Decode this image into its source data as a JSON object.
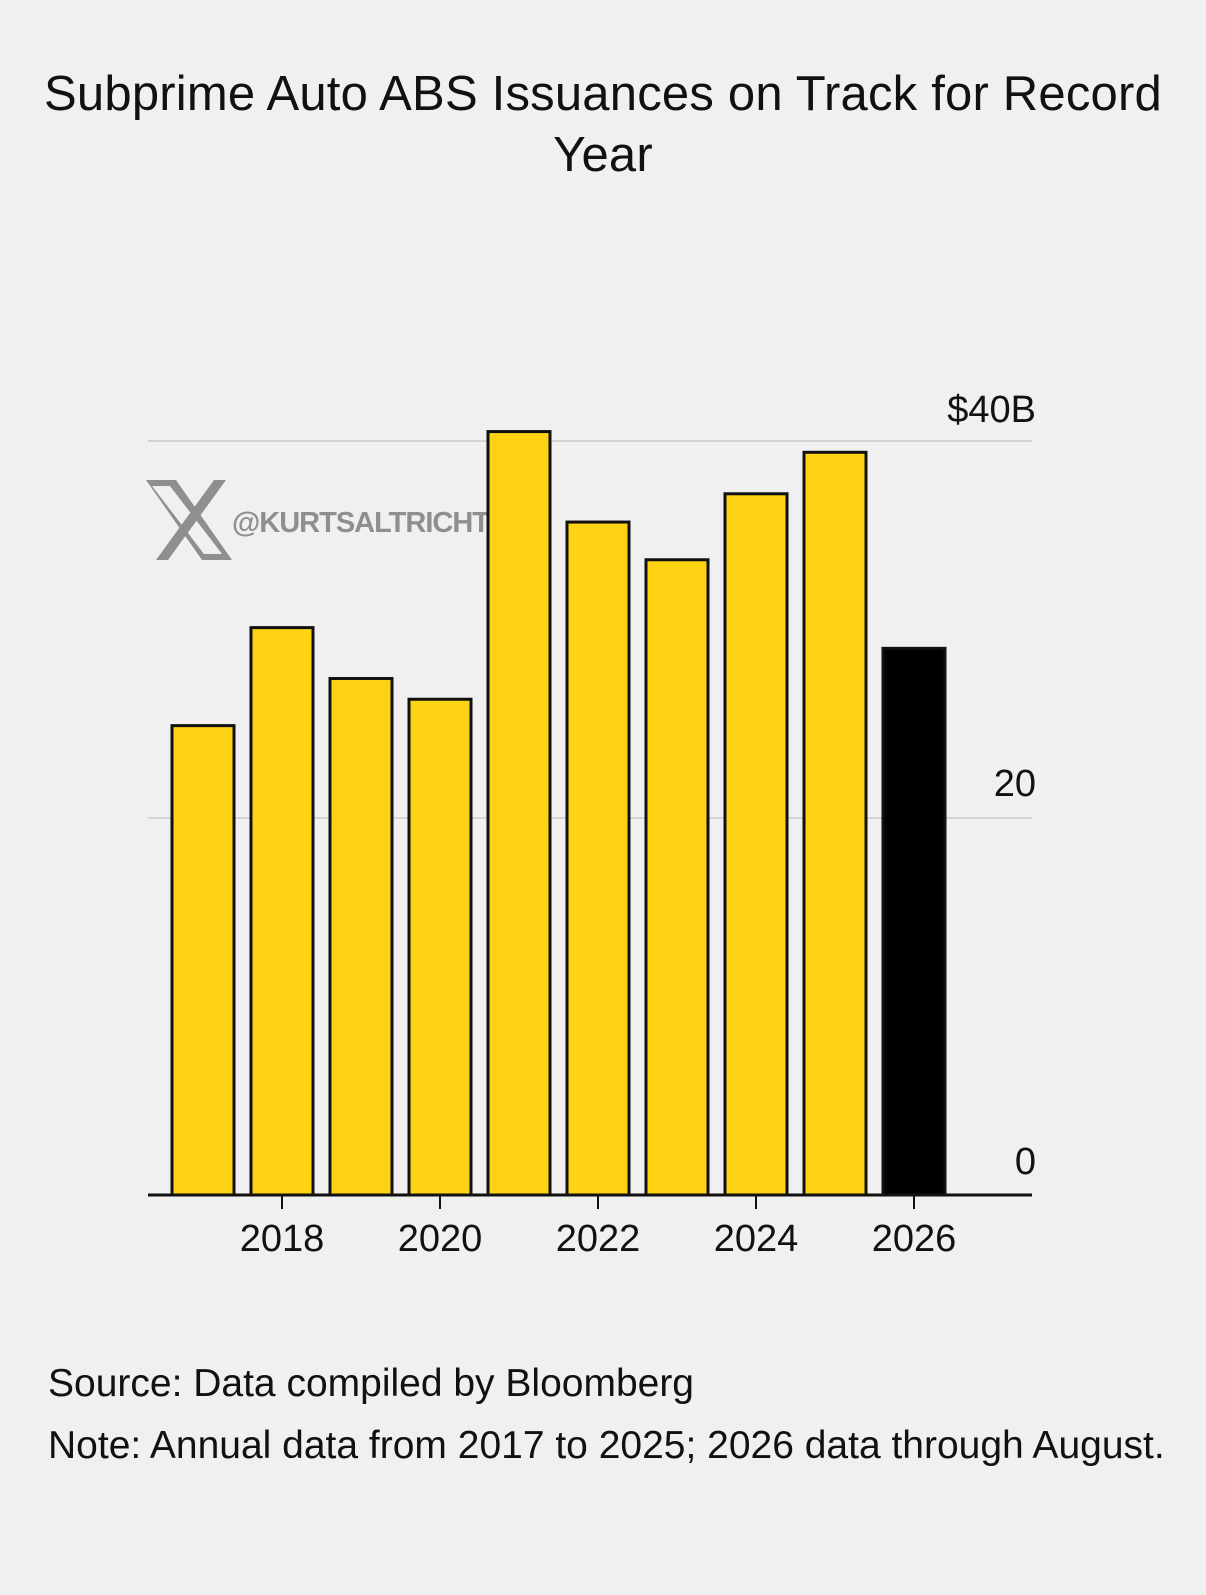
{
  "header": {
    "title": "Subprime Auto ABS Issuances on Track for Record Year"
  },
  "watermark": {
    "icon": "x-logo-icon",
    "handle": "@KURTSALTRICHTER"
  },
  "footer": {
    "source": "Source: Data compiled by Bloomberg",
    "note": "Note: Annual data from 2017 to 2025; 2026 data through August."
  },
  "colors": {
    "background": "#f0f0f0",
    "bar": "#fdd313",
    "highlight_bar": "#000000",
    "bar_outline": "#111111",
    "gridline": "#d4d4d4",
    "axis": "#111111",
    "watermark": "#8f8f8f"
  },
  "chart_data": {
    "type": "bar",
    "title": "Subprime Auto ABS Issuances on Track for Record Year",
    "categories": [
      "2017",
      "2018",
      "2019",
      "2020",
      "2021",
      "2022",
      "2023",
      "2024",
      "2025",
      "2026"
    ],
    "values": [
      24.9,
      30.1,
      27.4,
      26.3,
      40.5,
      35.7,
      33.7,
      37.2,
      39.4,
      29.0
    ],
    "highlight": [
      "2026"
    ],
    "x_tick_labels": [
      "2018",
      "2020",
      "2022",
      "2024",
      "2026"
    ],
    "y_ticks": [
      {
        "value": 0,
        "label": "0"
      },
      {
        "value": 20,
        "label": "20"
      },
      {
        "value": 40,
        "label": "$40B"
      }
    ],
    "ylim": [
      0,
      40
    ],
    "y_axis_side": "right",
    "grid": true,
    "xlabel": "",
    "ylabel": ""
  }
}
